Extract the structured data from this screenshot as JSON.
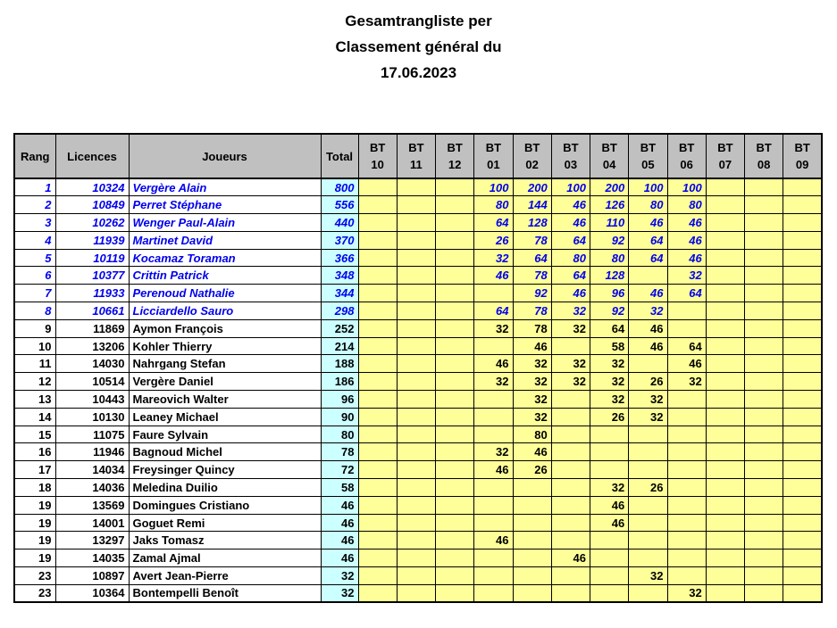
{
  "title": {
    "lines": [
      "Gesamtrangliste per",
      "Classement général du",
      "17.06.2023"
    ]
  },
  "colors": {
    "header_bg": "#C0C0C0",
    "bt_bg": "#FFFF99",
    "total_bg": "#CCFFFF",
    "highlight_text": "#0000EE",
    "border": "#000000"
  },
  "table": {
    "headers": {
      "rang": "Rang",
      "licences": "Licences",
      "joueurs": "Joueurs",
      "total": "Total"
    },
    "bt_prefix": "BT",
    "bt_columns": [
      "10",
      "11",
      "12",
      "01",
      "02",
      "03",
      "04",
      "05",
      "06",
      "07",
      "08",
      "09"
    ],
    "rows": [
      {
        "rang": "1",
        "licence": "10324",
        "joueur": "Vergère Alain",
        "total": "800",
        "highlighted": true,
        "bt": [
          "",
          "",
          "",
          "100",
          "200",
          "100",
          "200",
          "100",
          "100",
          "",
          "",
          ""
        ]
      },
      {
        "rang": "2",
        "licence": "10849",
        "joueur": "Perret Stéphane",
        "total": "556",
        "highlighted": true,
        "bt": [
          "",
          "",
          "",
          "80",
          "144",
          "46",
          "126",
          "80",
          "80",
          "",
          "",
          ""
        ]
      },
      {
        "rang": "3",
        "licence": "10262",
        "joueur": "Wenger Paul-Alain",
        "total": "440",
        "highlighted": true,
        "bt": [
          "",
          "",
          "",
          "64",
          "128",
          "46",
          "110",
          "46",
          "46",
          "",
          "",
          ""
        ]
      },
      {
        "rang": "4",
        "licence": "11939",
        "joueur": "Martinet David",
        "total": "370",
        "highlighted": true,
        "bt": [
          "",
          "",
          "",
          "26",
          "78",
          "64",
          "92",
          "64",
          "46",
          "",
          "",
          ""
        ]
      },
      {
        "rang": "5",
        "licence": "10119",
        "joueur": "Kocamaz Toraman",
        "total": "366",
        "highlighted": true,
        "bt": [
          "",
          "",
          "",
          "32",
          "64",
          "80",
          "80",
          "64",
          "46",
          "",
          "",
          ""
        ]
      },
      {
        "rang": "6",
        "licence": "10377",
        "joueur": "Crittin Patrick",
        "total": "348",
        "highlighted": true,
        "bt": [
          "",
          "",
          "",
          "46",
          "78",
          "64",
          "128",
          "",
          "32",
          "",
          "",
          ""
        ]
      },
      {
        "rang": "7",
        "licence": "11933",
        "joueur": "Perenoud Nathalie",
        "total": "344",
        "highlighted": true,
        "bt": [
          "",
          "",
          "",
          "",
          "92",
          "46",
          "96",
          "46",
          "64",
          "",
          "",
          ""
        ]
      },
      {
        "rang": "8",
        "licence": "10661",
        "joueur": "Licciardello Sauro",
        "total": "298",
        "highlighted": true,
        "bt": [
          "",
          "",
          "",
          "64",
          "78",
          "32",
          "92",
          "32",
          "",
          "",
          "",
          ""
        ]
      },
      {
        "rang": "9",
        "licence": "11869",
        "joueur": "Aymon François",
        "total": "252",
        "highlighted": false,
        "bt": [
          "",
          "",
          "",
          "32",
          "78",
          "32",
          "64",
          "46",
          "",
          "",
          "",
          ""
        ]
      },
      {
        "rang": "10",
        "licence": "13206",
        "joueur": "Kohler Thierry",
        "total": "214",
        "highlighted": false,
        "bt": [
          "",
          "",
          "",
          "",
          "46",
          "",
          "58",
          "46",
          "64",
          "",
          "",
          ""
        ]
      },
      {
        "rang": "11",
        "licence": "14030",
        "joueur": "Nahrgang Stefan",
        "total": "188",
        "highlighted": false,
        "bt": [
          "",
          "",
          "",
          "46",
          "32",
          "32",
          "32",
          "",
          "46",
          "",
          "",
          ""
        ]
      },
      {
        "rang": "12",
        "licence": "10514",
        "joueur": "Vergère Daniel",
        "total": "186",
        "highlighted": false,
        "bt": [
          "",
          "",
          "",
          "32",
          "32",
          "32",
          "32",
          "26",
          "32",
          "",
          "",
          ""
        ]
      },
      {
        "rang": "13",
        "licence": "10443",
        "joueur": "Mareovich Walter",
        "total": "96",
        "highlighted": false,
        "bt": [
          "",
          "",
          "",
          "",
          "32",
          "",
          "32",
          "32",
          "",
          "",
          "",
          ""
        ]
      },
      {
        "rang": "14",
        "licence": "10130",
        "joueur": "Leaney Michael",
        "total": "90",
        "highlighted": false,
        "bt": [
          "",
          "",
          "",
          "",
          "32",
          "",
          "26",
          "32",
          "",
          "",
          "",
          ""
        ]
      },
      {
        "rang": "15",
        "licence": "11075",
        "joueur": "Faure Sylvain",
        "total": "80",
        "highlighted": false,
        "bt": [
          "",
          "",
          "",
          "",
          "80",
          "",
          "",
          "",
          "",
          "",
          "",
          ""
        ]
      },
      {
        "rang": "16",
        "licence": "11946",
        "joueur": "Bagnoud Michel",
        "total": "78",
        "highlighted": false,
        "bt": [
          "",
          "",
          "",
          "32",
          "46",
          "",
          "",
          "",
          "",
          "",
          "",
          ""
        ]
      },
      {
        "rang": "17",
        "licence": "14034",
        "joueur": "Freysinger Quincy",
        "total": "72",
        "highlighted": false,
        "bt": [
          "",
          "",
          "",
          "46",
          "26",
          "",
          "",
          "",
          "",
          "",
          "",
          ""
        ]
      },
      {
        "rang": "18",
        "licence": "14036",
        "joueur": "Meledina Duilio",
        "total": "58",
        "highlighted": false,
        "bt": [
          "",
          "",
          "",
          "",
          "",
          "",
          "32",
          "26",
          "",
          "",
          "",
          ""
        ]
      },
      {
        "rang": "19",
        "licence": "13569",
        "joueur": "Domingues Cristiano",
        "total": "46",
        "highlighted": false,
        "bt": [
          "",
          "",
          "",
          "",
          "",
          "",
          "46",
          "",
          "",
          "",
          "",
          ""
        ]
      },
      {
        "rang": "19",
        "licence": "14001",
        "joueur": "Goguet Remi",
        "total": "46",
        "highlighted": false,
        "bt": [
          "",
          "",
          "",
          "",
          "",
          "",
          "46",
          "",
          "",
          "",
          "",
          ""
        ]
      },
      {
        "rang": "19",
        "licence": "13297",
        "joueur": "Jaks Tomasz",
        "total": "46",
        "highlighted": false,
        "bt": [
          "",
          "",
          "",
          "46",
          "",
          "",
          "",
          "",
          "",
          "",
          "",
          ""
        ]
      },
      {
        "rang": "19",
        "licence": "14035",
        "joueur": "Zamal Ajmal",
        "total": "46",
        "highlighted": false,
        "bt": [
          "",
          "",
          "",
          "",
          "",
          "46",
          "",
          "",
          "",
          "",
          "",
          ""
        ]
      },
      {
        "rang": "23",
        "licence": "10897",
        "joueur": "Avert Jean-Pierre",
        "total": "32",
        "highlighted": false,
        "bt": [
          "",
          "",
          "",
          "",
          "",
          "",
          "",
          "32",
          "",
          "",
          "",
          ""
        ]
      },
      {
        "rang": "23",
        "licence": "10364",
        "joueur": "Bontempelli Benoît",
        "total": "32",
        "highlighted": false,
        "bt": [
          "",
          "",
          "",
          "",
          "",
          "",
          "",
          "",
          "32",
          "",
          "",
          ""
        ]
      }
    ]
  }
}
